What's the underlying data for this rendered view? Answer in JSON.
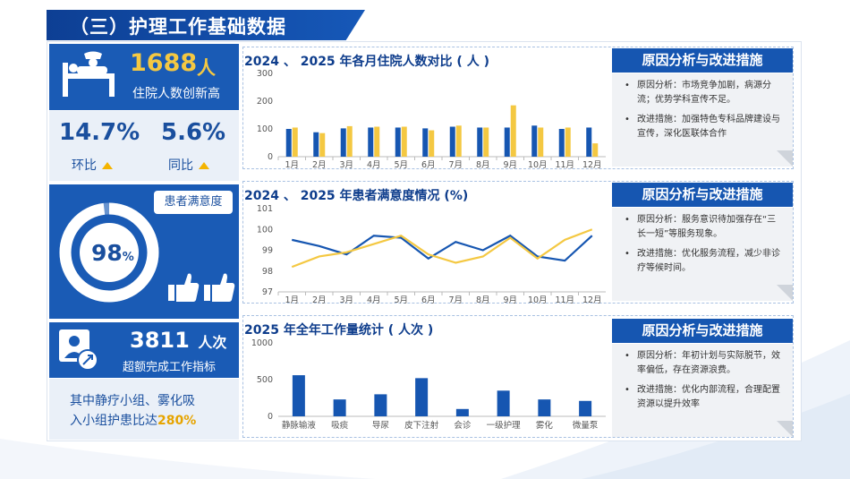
{
  "section_title": "（三）护理工作基础数据",
  "inpatients": {
    "value": "1688",
    "unit": "人",
    "label": "住院人数创新高"
  },
  "ratios": [
    {
      "value": "14.7%",
      "label": "环比"
    },
    {
      "value": "5.6%",
      "label": "同比"
    }
  ],
  "satisfaction": {
    "tag": "患者满意度",
    "value": "98",
    "unit": "%",
    "level": 0.98
  },
  "overwork": {
    "value": "3811",
    "unit": "人次",
    "label": "超额完成工作指标"
  },
  "note": {
    "line1": "其中静疗小组、雾化吸",
    "line2_prefix": "入小组护患比达",
    "line2_highlight": "280%"
  },
  "analysis": [
    {
      "title": "原因分析与改进措施",
      "items": [
        "原因分析：市场竞争加剧，病源分流；优势学科宣传不足。",
        "改进措施：加强特色专科品牌建设与宣传，深化医联体合作"
      ]
    },
    {
      "title": "原因分析与改进措施",
      "items": [
        "原因分析：服务意识待加强存在“三长一短”等服务现象。",
        "改进措施：优化服务流程，减少非诊疗等候时间。"
      ]
    },
    {
      "title": "原因分析与改进措施",
      "items": [
        "原因分析：年初计划与实际脱节，效率偏低，存在资源浪费。",
        "改进措施：优化内部流程，合理配置资源以提升效率"
      ]
    }
  ],
  "colors": {
    "blue": "#1a5bb5",
    "gold": "#f4c842",
    "bar_blue": "#1656b1",
    "bar_gold": "#f4c842"
  },
  "chart_data": [
    {
      "type": "bar",
      "title": "2024 、 2025 年各月住院人数对比 ( 人 )",
      "categories": [
        "1月",
        "2月",
        "3月",
        "4月",
        "5月",
        "6月",
        "7月",
        "8月",
        "9月",
        "10月",
        "11月",
        "12月"
      ],
      "series": [
        {
          "values": [
            100,
            88,
            102,
            105,
            105,
            102,
            108,
            105,
            105,
            112,
            100,
            105
          ]
        },
        {
          "values": [
            105,
            85,
            110,
            108,
            108,
            95,
            112,
            105,
            185,
            105,
            105,
            48
          ]
        }
      ],
      "yticks": [
        0,
        100,
        200,
        300
      ],
      "ylim": [
        0,
        300
      ]
    },
    {
      "type": "line",
      "title": "2024 、 2025 年患者满意度情况 (%)",
      "categories": [
        "1月",
        "2月",
        "3月",
        "4月",
        "5月",
        "6月",
        "7月",
        "8月",
        "9月",
        "10月",
        "11月",
        "12月"
      ],
      "series": [
        {
          "values": [
            99.5,
            99.2,
            98.8,
            99.7,
            99.6,
            98.6,
            99.4,
            99.0,
            99.7,
            98.7,
            98.5,
            99.7
          ]
        },
        {
          "values": [
            98.2,
            98.7,
            98.9,
            99.3,
            99.7,
            98.8,
            98.4,
            98.7,
            99.6,
            98.6,
            99.5,
            100.0
          ]
        }
      ],
      "yticks": [
        97,
        98,
        99,
        100,
        101
      ],
      "ylim": [
        97,
        101
      ]
    },
    {
      "type": "bar",
      "title": "2025 年全年工作量统计 ( 人次 )",
      "categories": [
        "静脉输液",
        "吸痰",
        "导尿",
        "皮下注射",
        "会诊",
        "一级护理",
        "雾化",
        "微量泵"
      ],
      "series": [
        {
          "values": [
            560,
            230,
            300,
            520,
            100,
            350,
            230,
            210
          ]
        }
      ],
      "yticks": [
        0,
        500,
        1000
      ],
      "ylim": [
        0,
        1000
      ]
    }
  ]
}
